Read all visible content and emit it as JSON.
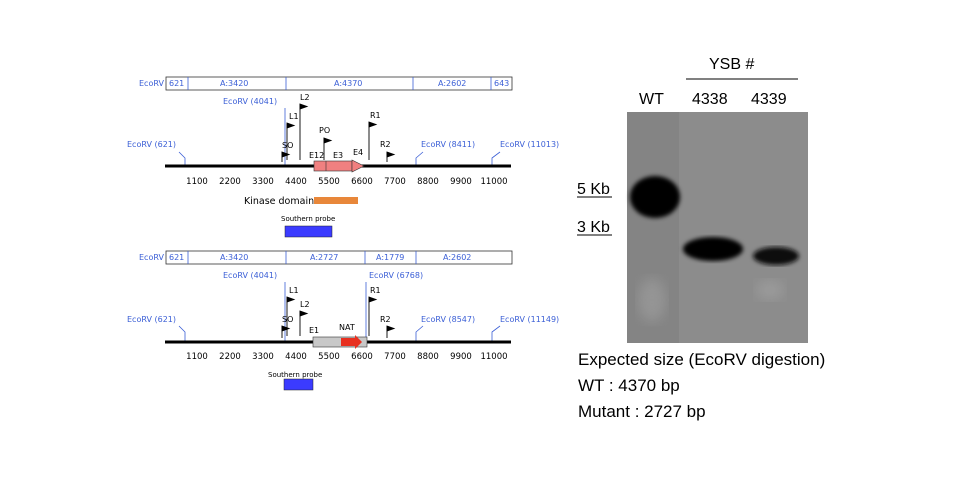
{
  "map_wt": {
    "restriction_bar": [
      {
        "start": "EcoRV",
        "frag": "621"
      },
      {
        "frag": "A:3420"
      },
      {
        "frag": "A:4370"
      },
      {
        "frag": "A:2602"
      },
      {
        "frag": "643"
      }
    ],
    "sites": [
      "EcoRV (621)",
      "EcoRV (4041)",
      "EcoRV (8411)",
      "EcoRV (11013)"
    ],
    "primers": [
      "L1",
      "L2",
      "PO",
      "R1",
      "R2",
      "SO"
    ],
    "exons": [
      "E12",
      "E3",
      "E4"
    ],
    "ticks": [
      "1100",
      "2200",
      "3300",
      "4400",
      "5500",
      "6600",
      "7700",
      "8800",
      "9900",
      "11000"
    ],
    "domain_label": "Kinase domain",
    "domain_color": "#e8873a",
    "probe_label": "Southern probe",
    "probe_color": "#3b3bff"
  },
  "map_mut": {
    "restriction_bar": [
      {
        "start": "EcoRV",
        "frag": "621"
      },
      {
        "frag": "A:3420"
      },
      {
        "frag": "A:2727"
      },
      {
        "frag": "A:1779"
      },
      {
        "frag": "A:2602"
      }
    ],
    "sites": [
      "EcoRV (621)",
      "EcoRV (4041)",
      "EcoRV (6768)",
      "EcoRV (8547)",
      "EcoRV (11149)"
    ],
    "primers": [
      "L1",
      "L2",
      "R1",
      "R2",
      "SO"
    ],
    "exons": [
      "E1",
      "NAT"
    ],
    "ticks": [
      "1100",
      "2200",
      "3300",
      "4400",
      "5500",
      "6600",
      "7700",
      "8800",
      "9900",
      "11000"
    ],
    "probe_label": "Southern probe",
    "nat_color": "#e83020"
  },
  "gel": {
    "header": "YSB #",
    "lanes": [
      "WT",
      "4338",
      "4339"
    ],
    "markers": [
      "5 Kb",
      "3 Kb"
    ]
  },
  "caption": {
    "line1": "Expected size (EcoRV digestion)",
    "line2": "WT : 4370 bp",
    "line3": "Mutant : 2727 bp"
  }
}
